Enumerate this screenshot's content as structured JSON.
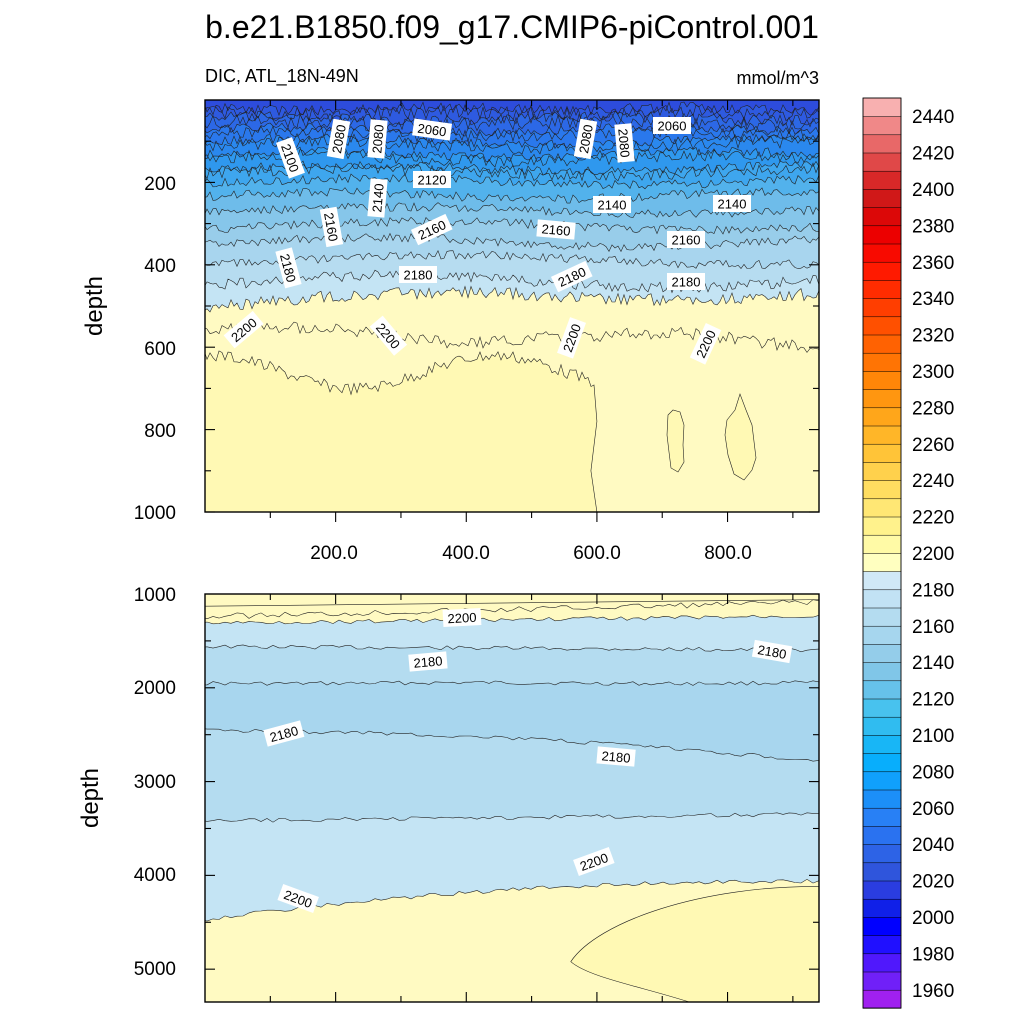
{
  "chart_data": {
    "type": "contour",
    "title": "b.e21.B1850.f09_g17.CMIP6-piControl.001",
    "variable_label": "DIC, ATL_18N-49N",
    "units": "mmol/m^3",
    "colorbar": {
      "levels": [
        1950,
        1960,
        1970,
        1980,
        1990,
        2000,
        2010,
        2020,
        2030,
        2040,
        2050,
        2060,
        2070,
        2080,
        2090,
        2100,
        2110,
        2120,
        2130,
        2140,
        2150,
        2160,
        2170,
        2180,
        2190,
        2200,
        2210,
        2220,
        2230,
        2240,
        2250,
        2260,
        2270,
        2280,
        2290,
        2300,
        2310,
        2320,
        2330,
        2340,
        2350,
        2360,
        2370,
        2380,
        2390,
        2400,
        2410,
        2420,
        2430,
        2440,
        2450
      ],
      "labels": [
        "1960",
        "1980",
        "2000",
        "2020",
        "2040",
        "2060",
        "2080",
        "2100",
        "2120",
        "2140",
        "2160",
        "2180",
        "2200",
        "2220",
        "2240",
        "2260",
        "2280",
        "2300",
        "2320",
        "2340",
        "2360",
        "2380",
        "2400",
        "2420",
        "2440"
      ],
      "colors": [
        "#a020f0",
        "#7020f8",
        "#5018fc",
        "#2010ff",
        "#0000ff",
        "#1020e8",
        "#2a3de0",
        "#2f55dc",
        "#2d63e6",
        "#2a72f0",
        "#2880f5",
        "#1c8ff8",
        "#10a0fc",
        "#08aefc",
        "#18b6f6",
        "#30bcf0",
        "#48c2ee",
        "#66c2ea",
        "#80c6e8",
        "#94cdea",
        "#a6d6ee",
        "#b4dcf0",
        "#c2e2f4",
        "#d0e8f6",
        "#ffffc0",
        "#fffaa6",
        "#fff28c",
        "#ffe774",
        "#ffdd60",
        "#ffd14c",
        "#ffc438",
        "#ffb628",
        "#ffa61a",
        "#ff9610",
        "#ff8608",
        "#ff7404",
        "#ff6202",
        "#ff5000",
        "#ff3e00",
        "#ff2c00",
        "#ff1a00",
        "#f80a00",
        "#ec0000",
        "#dc0808",
        "#d01818",
        "#d82828",
        "#e04848",
        "#e86868",
        "#f08888",
        "#f8b0b0"
      ]
    },
    "panels": [
      {
        "name": "upper",
        "ylabel": "depth",
        "ylim": [
          0,
          1000
        ],
        "y_ticks": [
          "200",
          "400",
          "600",
          "800",
          "1000"
        ],
        "x_ticks": [
          "200.0",
          "400.0",
          "600.0",
          "800.0"
        ],
        "xlim": [
          0,
          940
        ],
        "contour_labels": [
          "2060",
          "2060",
          "2080",
          "2080",
          "2080",
          "2080",
          "2100",
          "2120",
          "2140",
          "2140",
          "2140",
          "2160",
          "2160",
          "2160",
          "2160",
          "2180",
          "2180",
          "2180",
          "2180",
          "2200",
          "2200",
          "2200",
          "2200"
        ]
      },
      {
        "name": "lower",
        "ylabel": "depth",
        "ylim": [
          1000,
          5350
        ],
        "y_ticks": [
          "1000",
          "2000",
          "3000",
          "4000",
          "5000"
        ],
        "contour_labels": [
          "2200",
          "2180",
          "2180",
          "2180",
          "2180",
          "2200",
          "2200"
        ]
      }
    ]
  }
}
